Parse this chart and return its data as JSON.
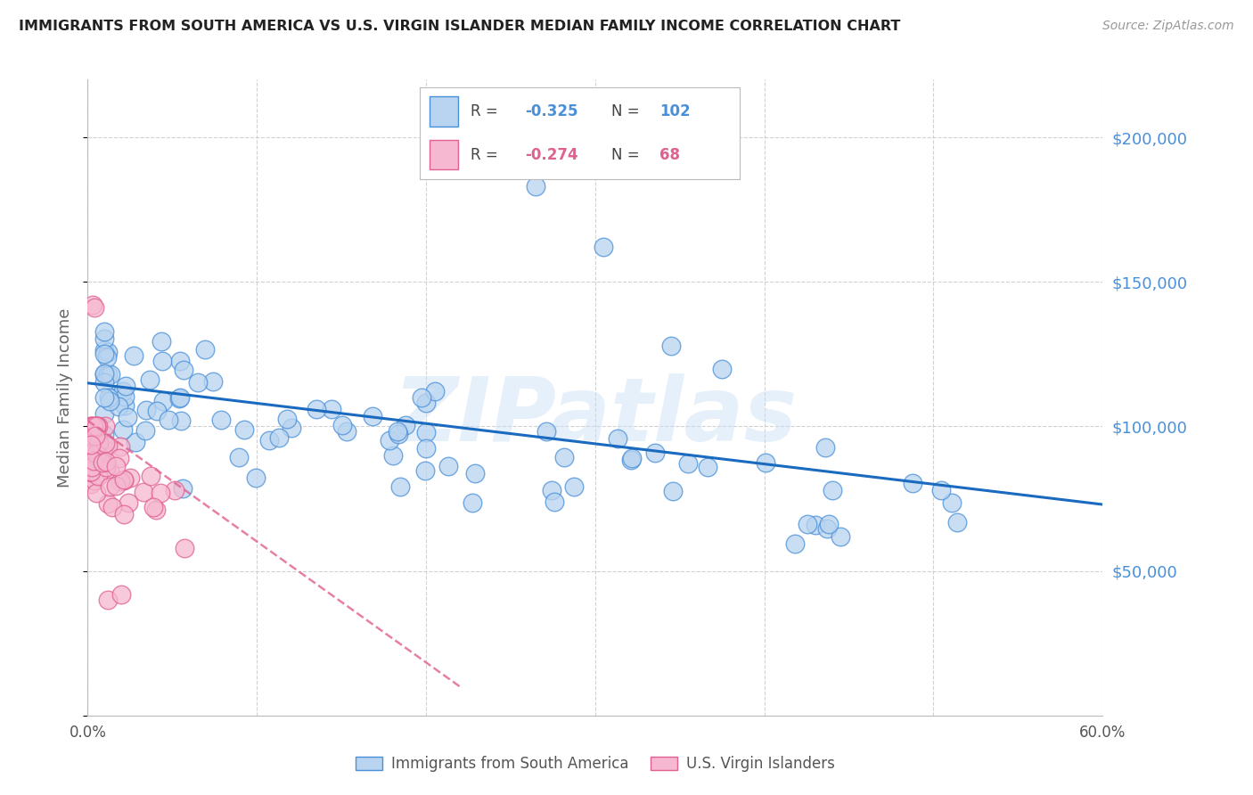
{
  "title": "IMMIGRANTS FROM SOUTH AMERICA VS U.S. VIRGIN ISLANDER MEDIAN FAMILY INCOME CORRELATION CHART",
  "source": "Source: ZipAtlas.com",
  "ylabel": "Median Family Income",
  "xlim": [
    0.0,
    0.6
  ],
  "ylim": [
    0,
    220000
  ],
  "blue_R": -0.325,
  "blue_N": 102,
  "pink_R": -0.274,
  "pink_N": 68,
  "legend_label_blue": "Immigrants from South America",
  "legend_label_pink": "U.S. Virgin Islanders",
  "watermark": "ZIPatlas",
  "blue_face_color": "#b8d4f0",
  "blue_edge_color": "#4a90d9",
  "pink_face_color": "#f5b8d0",
  "pink_edge_color": "#e06090",
  "blue_line_color": "#1a6bbf",
  "pink_line_color": "#e06090",
  "background_color": "#ffffff",
  "grid_color": "#cccccc",
  "title_color": "#222222",
  "axis_label_color": "#666666",
  "right_tick_color": "#4a90d9",
  "ytick_positions": [
    0,
    50000,
    100000,
    150000,
    200000
  ],
  "ytick_labels": [
    "",
    "$50,000",
    "$100,000",
    "$150,000",
    "$200,000"
  ],
  "xtick_positions": [
    0.0,
    0.1,
    0.2,
    0.3,
    0.4,
    0.5,
    0.6
  ],
  "xtick_labels": [
    "0.0%",
    "",
    "",
    "",
    "",
    "",
    "60.0%"
  ],
  "blue_line_x": [
    0.0,
    0.6
  ],
  "blue_line_y": [
    115000,
    73000
  ],
  "pink_line_x": [
    0.0,
    0.22
  ],
  "pink_line_y": [
    102000,
    10000
  ]
}
